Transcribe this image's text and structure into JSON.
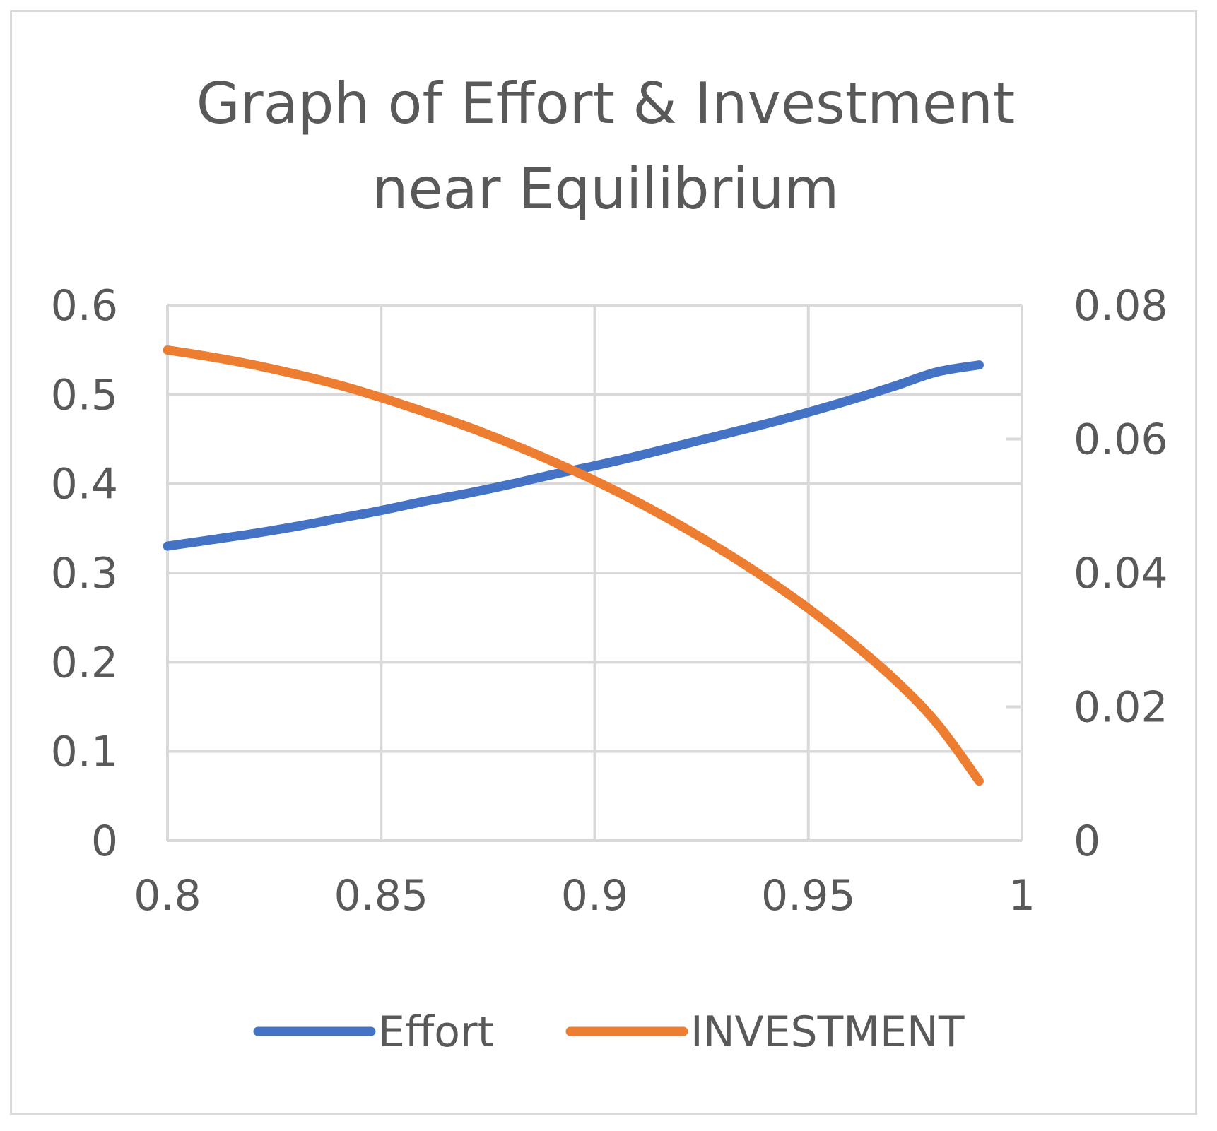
{
  "chart_data": {
    "type": "line",
    "title_lines": [
      "Graph of Effort & Investment",
      "near Equilibrium"
    ],
    "xlabel": "",
    "ylabel": "",
    "y2label": "",
    "xlim": [
      0.8,
      1.0
    ],
    "ylim": [
      0,
      0.6
    ],
    "y2lim": [
      0,
      0.08
    ],
    "x_ticks": [
      "0.8",
      "0.85",
      "0.9",
      "0.95",
      "1"
    ],
    "y_ticks": [
      "0",
      "0.1",
      "0.2",
      "0.3",
      "0.4",
      "0.5",
      "0.6"
    ],
    "y2_ticks": [
      "0",
      "0.02",
      "0.04",
      "0.06",
      "0.08"
    ],
    "grid": true,
    "legend_position": "bottom",
    "series": [
      {
        "name": "Effort",
        "axis": "left",
        "color": "#4472c4",
        "x": [
          0.8,
          0.81,
          0.82,
          0.83,
          0.84,
          0.85,
          0.86,
          0.87,
          0.88,
          0.89,
          0.9,
          0.91,
          0.92,
          0.93,
          0.94,
          0.95,
          0.96,
          0.97,
          0.98,
          0.99
        ],
        "y": [
          0.33,
          0.337,
          0.344,
          0.352,
          0.361,
          0.37,
          0.38,
          0.389,
          0.399,
          0.41,
          0.42,
          0.431,
          0.443,
          0.455,
          0.467,
          0.48,
          0.494,
          0.509,
          0.525,
          0.533
        ]
      },
      {
        "name": "INVESTMENT",
        "axis": "right",
        "color": "#ed7d31",
        "x": [
          0.8,
          0.81,
          0.82,
          0.83,
          0.84,
          0.85,
          0.86,
          0.87,
          0.88,
          0.89,
          0.9,
          0.91,
          0.92,
          0.93,
          0.94,
          0.95,
          0.96,
          0.97,
          0.98,
          0.99
        ],
        "y": [
          0.0733,
          0.0723,
          0.0711,
          0.0697,
          0.0681,
          0.0662,
          0.0641,
          0.0619,
          0.0594,
          0.0567,
          0.0538,
          0.0506,
          0.0471,
          0.0433,
          0.0392,
          0.0347,
          0.0297,
          0.0242,
          0.0176,
          0.0089
        ]
      }
    ]
  }
}
